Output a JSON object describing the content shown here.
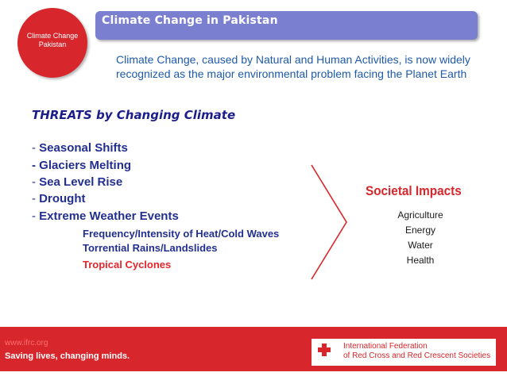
{
  "header": {
    "title": "Climate Change in Pakistan",
    "badge_line1": "Climate Change",
    "badge_line2": "Pakistan"
  },
  "intro": {
    "text": "Climate Change, caused by Natural and Human Activities, is now widely recognized as the major environmental problem facing the Planet Earth"
  },
  "threats": {
    "heading": "THREATS by Changing Climate",
    "items": [
      "Seasonal Shifts",
      "Glaciers Melting",
      "Sea Level Rise",
      "Drought",
      "Extreme Weather Events"
    ],
    "sub_items": [
      "Frequency/Intensity of Heat/Cold Waves",
      "Torrential Rains/Landslides",
      "Tropical Cyclones"
    ]
  },
  "impacts": {
    "heading": "Societal Impacts",
    "items": [
      "Agriculture",
      "Energy",
      "Water",
      "Health"
    ]
  },
  "footer": {
    "url": "www.ifrc.org",
    "tagline": "Saving lives, changing minds.",
    "org_line1": "International Federation",
    "org_line2": "of Red Cross and Red Crescent Societies"
  },
  "colors": {
    "accent_red": "#d7262c",
    "title_bar": "#7b7fcf",
    "text_blue": "#1f5aa8",
    "heading_navy": "#1b1e8a"
  }
}
